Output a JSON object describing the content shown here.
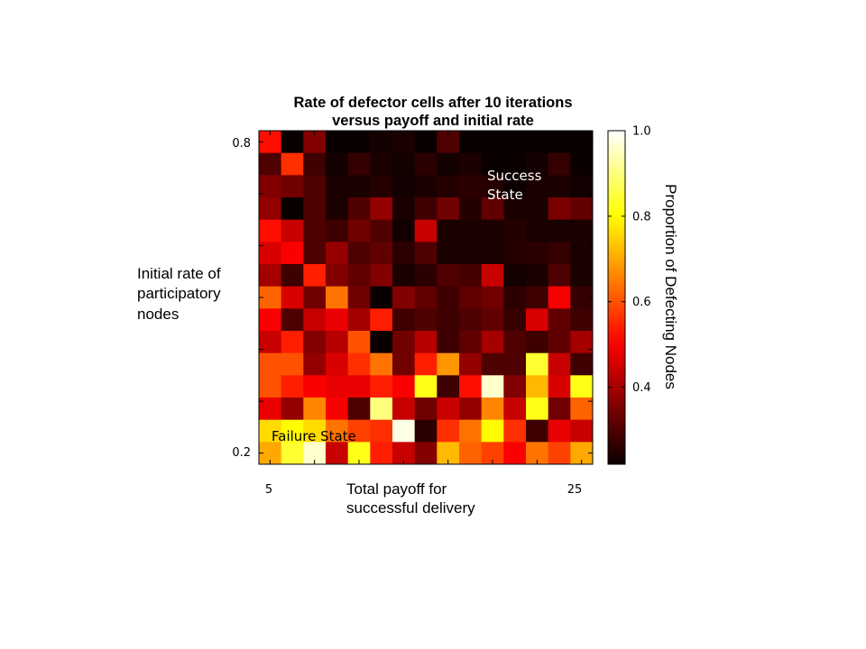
{
  "chart_data": {
    "type": "heatmap",
    "title_lines": [
      "Rate of defector cells after 10 iterations",
      "versus payoff and initial rate"
    ],
    "xlabel_lines": [
      "Total payoff for",
      "successful delivery"
    ],
    "ylabel_lines": [
      "Initial rate of",
      "participatory",
      "nodes"
    ],
    "x_tick_labels": [
      "5",
      "25"
    ],
    "y_tick_labels": [
      "0.8",
      "0.2"
    ],
    "colorbar_label": "Proportion of Defecting Nodes",
    "colorbar_ticks": [
      1.0,
      0.8,
      0.6,
      0.4
    ],
    "colorbar_tick_labels": [
      "1.0",
      "0.8",
      "0.6",
      "0.4"
    ],
    "vmin": 0.22,
    "vmax": 1.0,
    "colormap": "hot",
    "annotations": [
      {
        "lines": [
          "Success",
          "State"
        ],
        "color": "#ffffff"
      },
      {
        "lines": [
          "Failure State"
        ],
        "color": "#000000"
      }
    ],
    "rows_top_to_bottom": [
      [
        0.52,
        0.22,
        0.36,
        0.22,
        0.22,
        0.23,
        0.24,
        0.22,
        0.3,
        0.22,
        0.22,
        0.22,
        0.22,
        0.22,
        0.22
      ],
      [
        0.3,
        0.56,
        0.28,
        0.23,
        0.27,
        0.24,
        0.23,
        0.26,
        0.23,
        0.24,
        0.22,
        0.22,
        0.23,
        0.27,
        0.22
      ],
      [
        0.36,
        0.34,
        0.3,
        0.24,
        0.24,
        0.25,
        0.23,
        0.24,
        0.25,
        0.26,
        0.25,
        0.22,
        0.24,
        0.24,
        0.23
      ],
      [
        0.38,
        0.22,
        0.3,
        0.24,
        0.3,
        0.38,
        0.24,
        0.28,
        0.34,
        0.25,
        0.32,
        0.24,
        0.24,
        0.35,
        0.32
      ],
      [
        0.52,
        0.44,
        0.3,
        0.28,
        0.34,
        0.3,
        0.23,
        0.44,
        0.24,
        0.24,
        0.24,
        0.25,
        0.24,
        0.24,
        0.24
      ],
      [
        0.46,
        0.5,
        0.3,
        0.38,
        0.3,
        0.32,
        0.26,
        0.3,
        0.24,
        0.24,
        0.24,
        0.25,
        0.26,
        0.27,
        0.24
      ],
      [
        0.4,
        0.28,
        0.54,
        0.36,
        0.32,
        0.36,
        0.24,
        0.26,
        0.3,
        0.29,
        0.44,
        0.23,
        0.24,
        0.3,
        0.24
      ],
      [
        0.62,
        0.46,
        0.34,
        0.64,
        0.34,
        0.22,
        0.36,
        0.32,
        0.28,
        0.32,
        0.34,
        0.26,
        0.28,
        0.5,
        0.27
      ],
      [
        0.5,
        0.3,
        0.44,
        0.48,
        0.4,
        0.54,
        0.28,
        0.3,
        0.28,
        0.3,
        0.32,
        0.27,
        0.46,
        0.32,
        0.28
      ],
      [
        0.44,
        0.54,
        0.36,
        0.42,
        0.6,
        0.22,
        0.34,
        0.42,
        0.28,
        0.32,
        0.4,
        0.3,
        0.28,
        0.32,
        0.4
      ],
      [
        0.6,
        0.6,
        0.38,
        0.46,
        0.56,
        0.64,
        0.34,
        0.54,
        0.68,
        0.38,
        0.3,
        0.3,
        0.84,
        0.44,
        0.28
      ],
      [
        0.6,
        0.54,
        0.5,
        0.48,
        0.48,
        0.54,
        0.5,
        0.82,
        0.28,
        0.52,
        0.96,
        0.36,
        0.72,
        0.46,
        0.82
      ],
      [
        0.48,
        0.38,
        0.66,
        0.5,
        0.3,
        0.9,
        0.44,
        0.34,
        0.44,
        0.38,
        0.66,
        0.44,
        0.82,
        0.34,
        0.62
      ],
      [
        0.76,
        0.8,
        0.76,
        0.64,
        0.58,
        0.56,
        0.98,
        0.26,
        0.56,
        0.64,
        0.8,
        0.56,
        0.28,
        0.48,
        0.44
      ],
      [
        0.7,
        0.84,
        0.96,
        0.44,
        0.82,
        0.54,
        0.44,
        0.36,
        0.72,
        0.62,
        0.58,
        0.5,
        0.64,
        0.58,
        0.7
      ]
    ]
  }
}
